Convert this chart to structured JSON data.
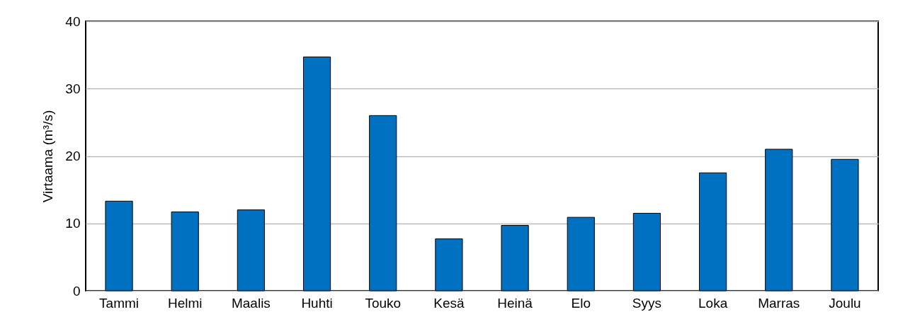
{
  "chart_data": {
    "type": "bar",
    "ylabel": "Virtaama (m³/s)",
    "categories": [
      "Tammi",
      "Helmi",
      "Maalis",
      "Huhti",
      "Touko",
      "Kesä",
      "Heinä",
      "Elo",
      "Syys",
      "Loka",
      "Marras",
      "Joulu"
    ],
    "values": [
      13.3,
      11.7,
      12.0,
      34.7,
      26.0,
      7.7,
      9.7,
      10.9,
      11.5,
      17.5,
      21.0,
      19.5
    ],
    "color": "#0070c0",
    "ylim": [
      0,
      40
    ],
    "yticks": [
      0,
      10,
      20,
      30,
      40
    ],
    "grid": "y"
  }
}
